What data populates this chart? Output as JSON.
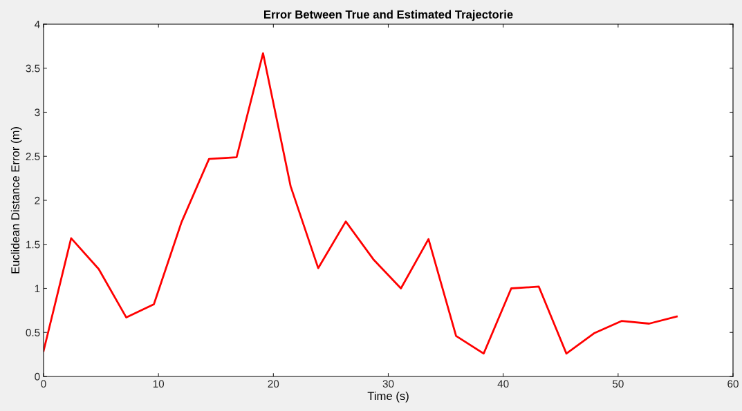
{
  "chart_data": {
    "type": "line",
    "title": "Error Between True and Estimated Trajectorie",
    "xlabel": "Time (s)",
    "ylabel": "Euclidean Distance Error (m)",
    "x": [
      0,
      2.4,
      4.8,
      7.2,
      9.6,
      12,
      14.4,
      16.8,
      19.1,
      21.5,
      23.9,
      26.3,
      28.7,
      31.1,
      33.5,
      35.9,
      38.3,
      40.7,
      43.1,
      45.5,
      47.9,
      50.3,
      52.7,
      55.1
    ],
    "series": [
      {
        "color": "#ff0000",
        "values": [
          0.29,
          1.57,
          1.22,
          0.67,
          0.82,
          1.75,
          2.47,
          2.49,
          3.67,
          2.16,
          1.23,
          1.76,
          1.33,
          1.0,
          1.56,
          0.46,
          0.26,
          1.0,
          1.02,
          0.26,
          0.49,
          0.63,
          0.6,
          0.68
        ]
      }
    ],
    "xlim": [
      0,
      60
    ],
    "xticks": [
      0,
      10,
      20,
      30,
      40,
      50,
      60
    ],
    "ylim": [
      0,
      4
    ],
    "yticks": [
      0,
      0.5,
      1,
      1.5,
      2,
      2.5,
      3,
      3.5,
      4
    ],
    "grid": false,
    "legend": false,
    "marker": "none",
    "line_style": "solid"
  }
}
